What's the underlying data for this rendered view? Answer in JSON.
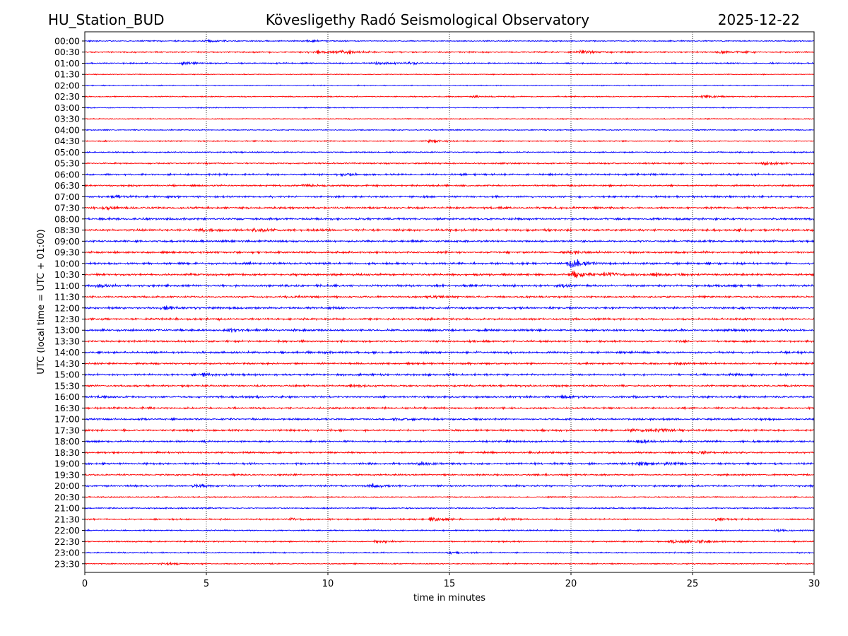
{
  "chart_data": {
    "type": "line",
    "title_left": "HU_Station_BUD",
    "title_center": "Köveslig­ethy Radó Seismological Observatory",
    "title_right": "2025-12-22",
    "xlabel": "time in minutes",
    "ylabel": "UTC (local time = UTC + 01:00)",
    "xlim": [
      0,
      30
    ],
    "xticks": [
      "0",
      "5",
      "10",
      "15",
      "20",
      "25",
      "30"
    ],
    "grid": "vertical dotted",
    "colors": {
      "even_row": "#0000ff",
      "odd_row": "#ff0000"
    },
    "rows": [
      {
        "label": "00:00",
        "amp": 0.18,
        "events": [
          {
            "t": 5.0,
            "a": 0.3
          },
          {
            "t": 9.2,
            "a": 0.3
          }
        ]
      },
      {
        "label": "00:30",
        "amp": 0.22,
        "events": [
          {
            "t": 9.6,
            "a": 0.55
          },
          {
            "t": 10.6,
            "a": 0.7
          },
          {
            "t": 20.4,
            "a": 0.7
          },
          {
            "t": 26.2,
            "a": 0.55
          }
        ]
      },
      {
        "label": "01:00",
        "amp": 0.2,
        "events": [
          {
            "t": 4.0,
            "a": 0.4
          },
          {
            "t": 12.0,
            "a": 0.5
          },
          {
            "t": 13.2,
            "a": 0.45
          }
        ]
      },
      {
        "label": "01:30",
        "amp": 0.12,
        "events": []
      },
      {
        "label": "02:00",
        "amp": 0.13,
        "events": []
      },
      {
        "label": "02:30",
        "amp": 0.17,
        "events": [
          {
            "t": 16.0,
            "a": 0.3
          },
          {
            "t": 25.5,
            "a": 0.45
          }
        ]
      },
      {
        "label": "03:00",
        "amp": 0.14,
        "events": []
      },
      {
        "label": "03:30",
        "amp": 0.14,
        "events": []
      },
      {
        "label": "04:00",
        "amp": 0.16,
        "events": []
      },
      {
        "label": "04:30",
        "amp": 0.17,
        "events": [
          {
            "t": 14.2,
            "a": 0.5
          }
        ]
      },
      {
        "label": "05:00",
        "amp": 0.2,
        "events": []
      },
      {
        "label": "05:30",
        "amp": 0.24,
        "events": [
          {
            "t": 28.0,
            "a": 0.5
          }
        ]
      },
      {
        "label": "06:00",
        "amp": 0.28,
        "events": [
          {
            "t": 10.6,
            "a": 0.45
          }
        ]
      },
      {
        "label": "06:30",
        "amp": 0.26,
        "events": [
          {
            "t": 9.0,
            "a": 0.4
          }
        ]
      },
      {
        "label": "07:00",
        "amp": 0.28,
        "events": [
          {
            "t": 1.2,
            "a": 0.5
          }
        ]
      },
      {
        "label": "07:30",
        "amp": 0.3,
        "events": [
          {
            "t": 0.9,
            "a": 0.5
          }
        ]
      },
      {
        "label": "08:00",
        "amp": 0.32,
        "events": []
      },
      {
        "label": "08:30",
        "amp": 0.34,
        "events": [
          {
            "t": 4.8,
            "a": 0.5
          },
          {
            "t": 7.0,
            "a": 0.55
          }
        ]
      },
      {
        "label": "09:00",
        "amp": 0.3,
        "events": []
      },
      {
        "label": "09:30",
        "amp": 0.3,
        "events": [
          {
            "t": 20.0,
            "a": 0.6
          }
        ]
      },
      {
        "label": "10:00",
        "amp": 0.32,
        "events": [
          {
            "t": 20.0,
            "a": 1.6
          }
        ]
      },
      {
        "label": "10:30",
        "amp": 0.32,
        "events": [
          {
            "t": 20.1,
            "a": 1.4
          },
          {
            "t": 21.5,
            "a": 0.9
          },
          {
            "t": 23.5,
            "a": 0.7
          }
        ]
      },
      {
        "label": "11:00",
        "amp": 0.34,
        "events": [
          {
            "t": 0.6,
            "a": 0.6
          },
          {
            "t": 19.6,
            "a": 0.5
          }
        ]
      },
      {
        "label": "11:30",
        "amp": 0.28,
        "events": [
          {
            "t": 14.3,
            "a": 0.4
          }
        ]
      },
      {
        "label": "12:00",
        "amp": 0.32,
        "events": [
          {
            "t": 3.2,
            "a": 0.45
          }
        ]
      },
      {
        "label": "12:30",
        "amp": 0.3,
        "events": []
      },
      {
        "label": "13:00",
        "amp": 0.32,
        "events": [
          {
            "t": 6.0,
            "a": 0.45
          }
        ]
      },
      {
        "label": "13:30",
        "amp": 0.28,
        "events": []
      },
      {
        "label": "14:00",
        "amp": 0.32,
        "events": []
      },
      {
        "label": "14:30",
        "amp": 0.28,
        "events": [
          {
            "t": 24.5,
            "a": 0.4
          }
        ]
      },
      {
        "label": "15:00",
        "amp": 0.32,
        "events": [
          {
            "t": 4.8,
            "a": 0.45
          }
        ]
      },
      {
        "label": "15:30",
        "amp": 0.28,
        "events": [
          {
            "t": 11.0,
            "a": 0.4
          }
        ]
      },
      {
        "label": "16:00",
        "amp": 0.3,
        "events": [
          {
            "t": 19.6,
            "a": 0.35
          }
        ]
      },
      {
        "label": "16:30",
        "amp": 0.26,
        "events": []
      },
      {
        "label": "17:00",
        "amp": 0.28,
        "events": [
          {
            "t": 12.8,
            "a": 0.35
          }
        ]
      },
      {
        "label": "17:30",
        "amp": 0.3,
        "events": [
          {
            "t": 22.5,
            "a": 0.5
          },
          {
            "t": 23.6,
            "a": 0.5
          }
        ]
      },
      {
        "label": "18:00",
        "amp": 0.28,
        "events": [
          {
            "t": 22.9,
            "a": 0.45
          }
        ]
      },
      {
        "label": "18:30",
        "amp": 0.27,
        "events": [
          {
            "t": 25.3,
            "a": 0.45
          }
        ]
      },
      {
        "label": "19:00",
        "amp": 0.3,
        "events": [
          {
            "t": 13.8,
            "a": 0.5
          },
          {
            "t": 22.8,
            "a": 0.45
          },
          {
            "t": 24.0,
            "a": 0.5
          }
        ]
      },
      {
        "label": "19:30",
        "amp": 0.26,
        "events": []
      },
      {
        "label": "20:00",
        "amp": 0.26,
        "events": [
          {
            "t": 4.6,
            "a": 0.45
          },
          {
            "t": 11.8,
            "a": 0.55
          }
        ]
      },
      {
        "label": "20:30",
        "amp": 0.18,
        "events": []
      },
      {
        "label": "21:00",
        "amp": 0.2,
        "events": []
      },
      {
        "label": "21:30",
        "amp": 0.22,
        "events": [
          {
            "t": 8.6,
            "a": 0.4
          },
          {
            "t": 14.3,
            "a": 0.65
          },
          {
            "t": 17.2,
            "a": 0.4
          },
          {
            "t": 26.0,
            "a": 0.45
          }
        ]
      },
      {
        "label": "22:00",
        "amp": 0.2,
        "events": [
          {
            "t": 28.5,
            "a": 0.45
          }
        ]
      },
      {
        "label": "22:30",
        "amp": 0.2,
        "events": [
          {
            "t": 12.0,
            "a": 0.35
          },
          {
            "t": 24.2,
            "a": 0.7
          },
          {
            "t": 25.3,
            "a": 0.45
          }
        ]
      },
      {
        "label": "23:00",
        "amp": 0.18,
        "events": [
          {
            "t": 15.0,
            "a": 0.4
          }
        ]
      },
      {
        "label": "23:30",
        "amp": 0.17,
        "events": [
          {
            "t": 3.2,
            "a": 0.35
          }
        ]
      }
    ]
  }
}
